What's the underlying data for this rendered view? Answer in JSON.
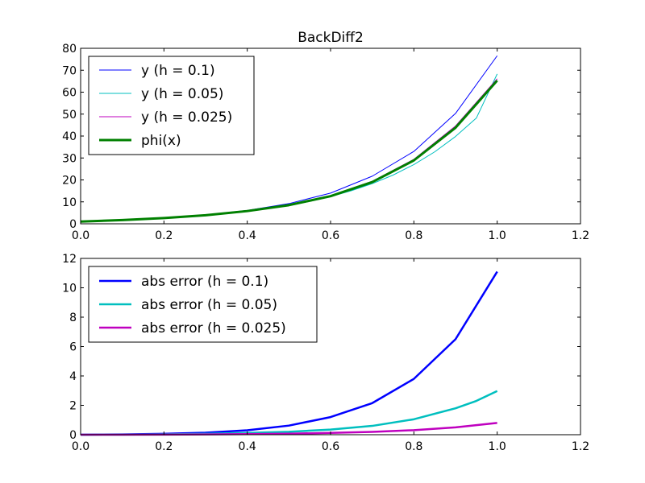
{
  "colors": {
    "blue": "#0000ff",
    "cyan": "#00bfbf",
    "magenta": "#bf00bf",
    "green": "#008000"
  },
  "chart_data": [
    {
      "type": "line",
      "title": "BackDiff2",
      "xlabel": "",
      "ylabel": "",
      "xlim": [
        0.0,
        1.2
      ],
      "ylim": [
        0,
        80
      ],
      "xticks": [
        "0.0",
        "0.2",
        "0.4",
        "0.6",
        "0.8",
        "1.0",
        "1.2"
      ],
      "yticks": [
        "0",
        "10",
        "20",
        "30",
        "40",
        "50",
        "60",
        "70",
        "80"
      ],
      "grid": false,
      "legend_position": "upper-left",
      "series": [
        {
          "name": "y (h = 0.1)",
          "color": "#0000ff",
          "linewidth": 1,
          "x": [
            0,
            0.1,
            0.2,
            0.3,
            0.4,
            0.5,
            0.6,
            0.7,
            0.8,
            0.9,
            1.0
          ],
          "y": [
            1,
            1.8,
            2.7,
            4.1,
            6.1,
            9.2,
            14.0,
            21.7,
            33.0,
            50.3,
            76.6
          ]
        },
        {
          "name": "y (h = 0.05)",
          "color": "#00bfbf",
          "linewidth": 1,
          "x": [
            0,
            0.05,
            0.1,
            0.15,
            0.2,
            0.25,
            0.3,
            0.35,
            0.4,
            0.45,
            0.5,
            0.55,
            0.6,
            0.65,
            0.7,
            0.75,
            0.8,
            0.85,
            0.9,
            0.95,
            1.0
          ],
          "y": [
            1,
            1.4,
            1.8,
            2.2,
            2.7,
            3.2,
            3.9,
            4.7,
            5.7,
            6.9,
            8.4,
            10.2,
            12.4,
            15.1,
            18.3,
            22.2,
            27.0,
            32.8,
            39.8,
            48.2,
            68.3
          ]
        },
        {
          "name": "y (h = 0.025)",
          "color": "#bf00bf",
          "linewidth": 1,
          "x": [
            0,
            0.1,
            0.2,
            0.3,
            0.4,
            0.5,
            0.6,
            0.7,
            0.8,
            0.9,
            1.0
          ],
          "y": [
            1,
            1.7,
            2.6,
            3.9,
            5.8,
            8.6,
            12.8,
            19.4,
            29.4,
            44.6,
            66.1
          ]
        },
        {
          "name": "phi(x)",
          "color": "#008000",
          "linewidth": 3,
          "x": [
            0,
            0.1,
            0.2,
            0.3,
            0.4,
            0.5,
            0.6,
            0.7,
            0.8,
            0.9,
            1.0
          ],
          "y": [
            1,
            1.7,
            2.6,
            3.9,
            5.8,
            8.5,
            12.6,
            19.0,
            28.9,
            43.8,
            65.3
          ]
        }
      ]
    },
    {
      "type": "line",
      "title": "",
      "xlabel": "",
      "ylabel": "",
      "xlim": [
        0.0,
        1.2
      ],
      "ylim": [
        0,
        12
      ],
      "xticks": [
        "0.0",
        "0.2",
        "0.4",
        "0.6",
        "0.8",
        "1.0",
        "1.2"
      ],
      "yticks": [
        "0",
        "2",
        "4",
        "6",
        "8",
        "10",
        "12"
      ],
      "grid": false,
      "legend_position": "upper-left",
      "series": [
        {
          "name": "abs error (h = 0.1)",
          "color": "#0000ff",
          "linewidth": 2.5,
          "x": [
            0,
            0.1,
            0.2,
            0.3,
            0.4,
            0.5,
            0.6,
            0.7,
            0.8,
            0.9,
            1.0
          ],
          "y": [
            0.0,
            0.02,
            0.06,
            0.14,
            0.3,
            0.62,
            1.2,
            2.15,
            3.8,
            6.5,
            11.1
          ]
        },
        {
          "name": "abs error (h = 0.05)",
          "color": "#00bfbf",
          "linewidth": 2.5,
          "x": [
            0,
            0.1,
            0.2,
            0.3,
            0.4,
            0.5,
            0.6,
            0.7,
            0.8,
            0.9,
            0.95,
            1.0
          ],
          "y": [
            0.0,
            0.01,
            0.03,
            0.06,
            0.12,
            0.2,
            0.35,
            0.6,
            1.05,
            1.8,
            2.3,
            2.97
          ]
        },
        {
          "name": "abs error (h = 0.025)",
          "color": "#bf00bf",
          "linewidth": 2.5,
          "x": [
            0,
            0.1,
            0.2,
            0.3,
            0.4,
            0.5,
            0.6,
            0.7,
            0.8,
            0.9,
            1.0
          ],
          "y": [
            0.0,
            0.0,
            0.01,
            0.02,
            0.04,
            0.07,
            0.12,
            0.19,
            0.31,
            0.5,
            0.8
          ]
        }
      ]
    }
  ]
}
